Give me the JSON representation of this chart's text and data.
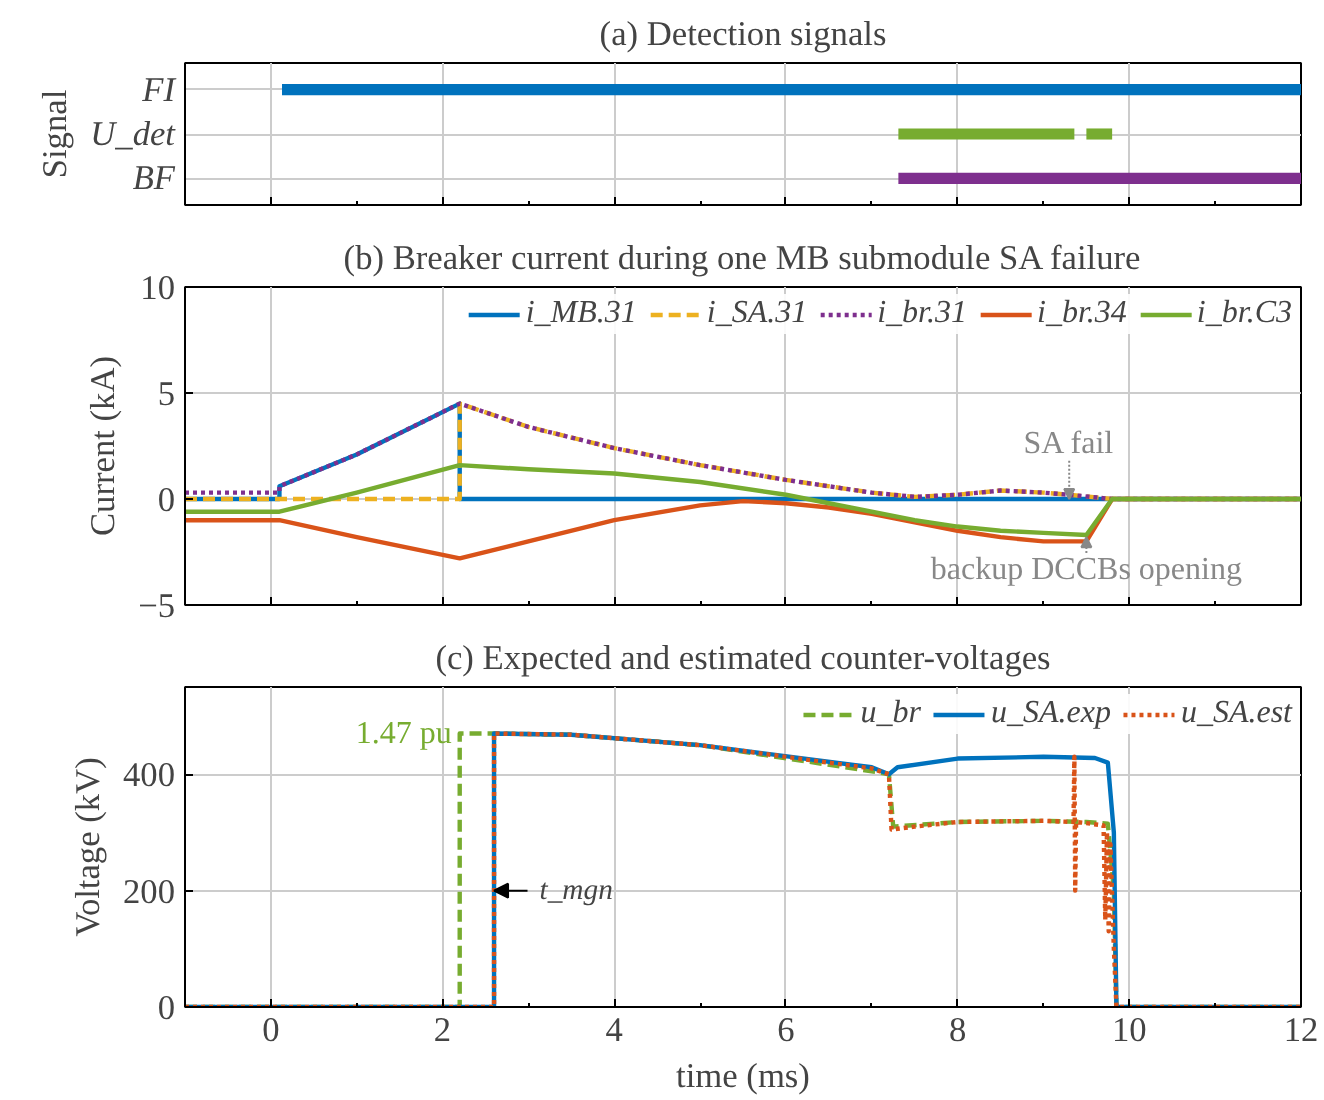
{
  "chart_data": [
    {
      "type": "bar",
      "orientation": "horizontal",
      "title": "(a) Detection signals",
      "ylabel": "Signal",
      "categories": [
        "FI",
        "U_det",
        "BF"
      ],
      "xlim": [
        -1,
        12
      ],
      "xticks": [
        0,
        2,
        4,
        6,
        8,
        10,
        12
      ],
      "tick_labels": "y",
      "grid": true,
      "series": [
        {
          "color": "#0072bd",
          "values": [
            11.87,
            null,
            null
          ],
          "base": [
            0.13,
            null,
            null
          ]
        },
        {
          "color": "#77ac30",
          "values": [
            null,
            2.05,
            null
          ],
          "base": [
            null,
            7.31,
            null
          ]
        },
        {
          "color": "#77ac30",
          "values": [
            null,
            0.3,
            null
          ],
          "base": [
            null,
            9.5,
            null
          ]
        },
        {
          "color": "#7e2f8e",
          "values": [
            null,
            null,
            4.69
          ],
          "base": [
            null,
            null,
            7.31
          ]
        }
      ]
    },
    {
      "type": "line",
      "title": "(b) Breaker current during one MB submodule SA failure",
      "ylabel": "Current (kA)",
      "xlim": [
        -1,
        12
      ],
      "xticks": [
        0,
        2,
        4,
        6,
        8,
        10,
        12
      ],
      "ylim": [
        -5,
        10
      ],
      "yticks": [
        -5,
        0,
        5,
        10
      ],
      "tick_labels": "y",
      "grid": true,
      "legend": "top right",
      "annotations": [
        {
          "text": "SA fail",
          "x": 9.3,
          "y": 0
        },
        {
          "text": "backup DCCBs opening",
          "x": 9.5,
          "y": -1.8
        }
      ],
      "series": [
        {
          "name": "i_MB.31",
          "color": "#0072bd",
          "line_style": "solid",
          "x": [
            -1,
            0.1,
            0.1,
            1,
            2.2,
            2.2,
            12
          ],
          "values": [
            0,
            0,
            0.6,
            2.1,
            4.5,
            0,
            0
          ]
        },
        {
          "name": "i_SA.31",
          "color": "#edb120",
          "line_style": "dashed",
          "x": [
            -1,
            2.2,
            2.2,
            3,
            4,
            5,
            6,
            7,
            7.5,
            8,
            8.5,
            9,
            9.3,
            9.8,
            12
          ],
          "values": [
            0,
            0,
            4.5,
            3.4,
            2.4,
            1.6,
            0.9,
            0.3,
            0.1,
            0.2,
            0.4,
            0.3,
            0.2,
            0,
            0
          ]
        },
        {
          "name": "i_br.31",
          "color": "#7e2f8e",
          "line_style": "dotted",
          "x": [
            -1,
            0.1,
            0.1,
            1,
            2.2,
            3,
            4,
            5,
            6,
            7,
            7.5,
            8,
            8.5,
            9,
            9.3,
            9.8,
            12
          ],
          "values": [
            0.3,
            0.3,
            0.6,
            2.1,
            4.5,
            3.4,
            2.4,
            1.6,
            0.9,
            0.3,
            0.1,
            0.2,
            0.4,
            0.3,
            0.2,
            0,
            0
          ]
        },
        {
          "name": "i_br.34",
          "color": "#d95319",
          "line_style": "solid",
          "x": [
            -1,
            0.1,
            1,
            2.2,
            3,
            4,
            5,
            5.5,
            6,
            6.5,
            7,
            7.5,
            8,
            8.5,
            9,
            9.5,
            9.8,
            12
          ],
          "values": [
            -1,
            -1,
            -1.8,
            -2.8,
            -2.0,
            -1.0,
            -0.3,
            -0.1,
            -0.2,
            -0.4,
            -0.7,
            -1.1,
            -1.5,
            -1.8,
            -2.0,
            -2.0,
            0,
            0
          ]
        },
        {
          "name": "i_br.C3",
          "color": "#77ac30",
          "line_style": "solid",
          "x": [
            -1,
            0.1,
            1,
            2.2,
            3,
            4,
            5,
            6,
            6.5,
            7,
            7.5,
            8,
            8.5,
            9,
            9.5,
            9.8,
            12
          ],
          "values": [
            -0.6,
            -0.6,
            0.3,
            1.6,
            1.4,
            1.2,
            0.8,
            0.2,
            -0.2,
            -0.6,
            -1.0,
            -1.3,
            -1.5,
            -1.6,
            -1.7,
            0,
            0
          ]
        }
      ]
    },
    {
      "type": "line",
      "title": "(c) Expected and estimated counter-voltages",
      "xlabel": "time (ms)",
      "ylabel": "Voltage (kV)",
      "xlim": [
        -1,
        12
      ],
      "xticks": [
        0,
        2,
        4,
        6,
        8,
        10,
        12
      ],
      "ylim": [
        0,
        550
      ],
      "yticks": [
        0,
        200,
        400
      ],
      "grid": true,
      "legend": "top right",
      "annotations": [
        {
          "text": "1.47 pu",
          "x": 2.2,
          "y": 470
        },
        {
          "text": "t_mgn",
          "x": 2.6,
          "y": 200
        }
      ],
      "series": [
        {
          "name": "u_br",
          "color": "#77ac30",
          "line_style": "dashed",
          "x": [
            -1,
            2.2,
            2.2,
            2.6,
            3.5,
            5,
            7,
            7.2,
            7.25,
            8,
            9,
            9.5,
            9.75,
            9.82,
            9.85,
            12
          ],
          "values": [
            0,
            0,
            470,
            470,
            468,
            450,
            405,
            400,
            310,
            318,
            320,
            318,
            315,
            200,
            0,
            0
          ]
        },
        {
          "name": "u_SA.exp",
          "color": "#0072bd",
          "line_style": "solid",
          "x": [
            -1,
            2.6,
            2.6,
            3.5,
            5,
            7,
            7.2,
            7.3,
            8,
            9,
            9.6,
            9.75,
            9.82,
            9.85,
            12
          ],
          "values": [
            0,
            0,
            470,
            468,
            450,
            412,
            400,
            412,
            427,
            430,
            428,
            420,
            300,
            0,
            0
          ]
        },
        {
          "name": "u_SA.est",
          "color": "#d95319",
          "line_style": "dotted",
          "x": [
            -1,
            2.6,
            2.6,
            3.5,
            5,
            7,
            7.2,
            7.23,
            7.5,
            8,
            9,
            9.35,
            9.36,
            9.37,
            9.38,
            9.5,
            9.7,
            9.72,
            9.74,
            9.76,
            9.78,
            9.82,
            9.85,
            12
          ],
          "values": [
            0,
            0,
            470,
            468,
            450,
            410,
            400,
            305,
            310,
            318,
            320,
            318,
            430,
            200,
            318,
            316,
            312,
            150,
            300,
            130,
            280,
            100,
            0,
            0
          ]
        }
      ]
    }
  ]
}
